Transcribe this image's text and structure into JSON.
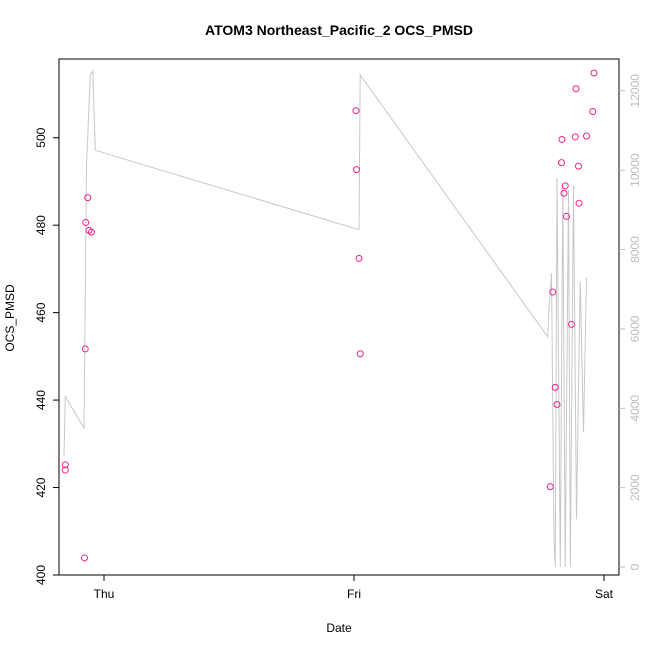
{
  "chart_data": {
    "type": "scatter",
    "title": "ATOM3 Northeast_Pacific_2 OCS_PMSD",
    "xlabel": "Date",
    "ylabel": "OCS_PMSD",
    "x_axis": {
      "type": "time",
      "range_days_from_thu": [
        -0.18,
        2.06
      ],
      "ticks": [
        {
          "label": "Thu",
          "day": 0
        },
        {
          "label": "Fri",
          "day": 1
        },
        {
          "label": "Sat",
          "day": 2
        }
      ]
    },
    "y_left": {
      "range": [
        400,
        518
      ],
      "ticks": [
        400,
        420,
        440,
        460,
        480,
        500
      ]
    },
    "y_right": {
      "range": [
        -200,
        12800
      ],
      "ticks": [
        0,
        2000,
        4000,
        6000,
        8000,
        10000,
        12000
      ],
      "color": "#bdbdbd"
    },
    "series": [
      {
        "type": "scatter",
        "marker": "open-circle",
        "color": "#ee2288",
        "axis": "left",
        "points": [
          {
            "day": -0.155,
            "y": 425.2
          },
          {
            "day": -0.155,
            "y": 424.0
          },
          {
            "day": -0.078,
            "y": 403.9
          },
          {
            "day": -0.075,
            "y": 451.7
          },
          {
            "day": -0.073,
            "y": 480.6
          },
          {
            "day": -0.065,
            "y": 486.3
          },
          {
            "day": -0.06,
            "y": 478.8
          },
          {
            "day": -0.05,
            "y": 478.4
          },
          {
            "day": 1.008,
            "y": 506.2
          },
          {
            "day": 1.01,
            "y": 492.7
          },
          {
            "day": 1.02,
            "y": 472.4
          },
          {
            "day": 1.025,
            "y": 450.6
          },
          {
            "day": 1.785,
            "y": 420.2
          },
          {
            "day": 1.795,
            "y": 464.7
          },
          {
            "day": 1.805,
            "y": 442.9
          },
          {
            "day": 1.812,
            "y": 439.0
          },
          {
            "day": 1.83,
            "y": 494.3
          },
          {
            "day": 1.832,
            "y": 499.6
          },
          {
            "day": 1.84,
            "y": 487.3
          },
          {
            "day": 1.845,
            "y": 489.0
          },
          {
            "day": 1.85,
            "y": 482.0
          },
          {
            "day": 1.87,
            "y": 457.3
          },
          {
            "day": 1.885,
            "y": 500.2
          },
          {
            "day": 1.888,
            "y": 511.2
          },
          {
            "day": 1.898,
            "y": 493.5
          },
          {
            "day": 1.9,
            "y": 485.0
          },
          {
            "day": 1.93,
            "y": 500.4
          },
          {
            "day": 1.955,
            "y": 506.0
          },
          {
            "day": 1.96,
            "y": 514.8
          }
        ]
      },
      {
        "type": "line",
        "color": "#c8c8c8",
        "axis": "right",
        "points": [
          {
            "day": -0.16,
            "y": 2800
          },
          {
            "day": -0.155,
            "y": 4300
          },
          {
            "day": -0.08,
            "y": 3500
          },
          {
            "day": -0.07,
            "y": 10100
          },
          {
            "day": -0.055,
            "y": 12400
          },
          {
            "day": -0.045,
            "y": 12500
          },
          {
            "day": -0.035,
            "y": 10500
          },
          {
            "day": 1.02,
            "y": 8500
          },
          {
            "day": 1.025,
            "y": 12400
          },
          {
            "day": 1.775,
            "y": 5800
          },
          {
            "day": 1.78,
            "y": 6500
          },
          {
            "day": 1.79,
            "y": 7400
          },
          {
            "day": 1.8,
            "y": 700
          },
          {
            "day": 1.805,
            "y": 0
          },
          {
            "day": 1.812,
            "y": 9800
          },
          {
            "day": 1.825,
            "y": 0
          },
          {
            "day": 1.835,
            "y": 9600
          },
          {
            "day": 1.845,
            "y": 0
          },
          {
            "day": 1.858,
            "y": 9500
          },
          {
            "day": 1.865,
            "y": 0
          },
          {
            "day": 1.878,
            "y": 9600
          },
          {
            "day": 1.89,
            "y": 1200
          },
          {
            "day": 1.905,
            "y": 7200
          },
          {
            "day": 1.918,
            "y": 3400
          },
          {
            "day": 1.93,
            "y": 7300
          }
        ]
      }
    ]
  }
}
